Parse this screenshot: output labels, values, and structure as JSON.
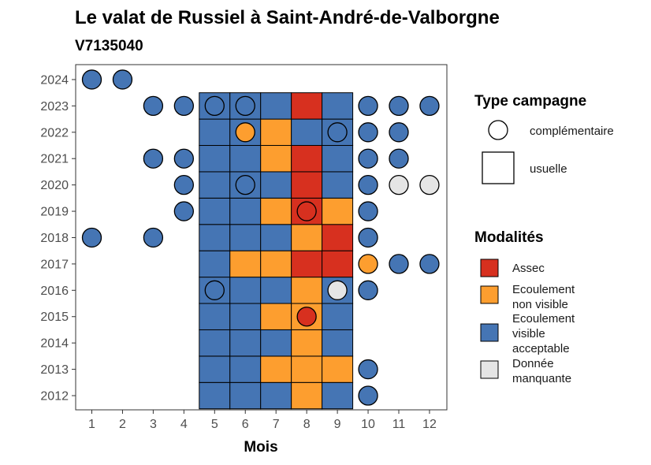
{
  "chart_data": {
    "type": "heatmap",
    "title": "Le valat de Russiel à Saint-André-de-Valborgne",
    "subtitle": "V7135040",
    "xlabel": "Mois",
    "x_ticks": [
      "1",
      "2",
      "3",
      "4",
      "5",
      "6",
      "7",
      "8",
      "9",
      "10",
      "11",
      "12"
    ],
    "y_ticks": [
      "2012",
      "2013",
      "2014",
      "2015",
      "2016",
      "2017",
      "2018",
      "2019",
      "2020",
      "2021",
      "2022",
      "2023",
      "2024"
    ],
    "grid": false,
    "colors": {
      "Assec": "#d7301f",
      "Ecoulement non visible": "#fd9e2f",
      "Ecoulement visible acceptable": "#4575b4",
      "Donnée manquante": "#e5e5e5"
    },
    "legend_type": {
      "title": "Type campagne",
      "placement": "right",
      "items": [
        {
          "label": "complémentaire",
          "shape": "circle"
        },
        {
          "label": "usuelle",
          "shape": "square"
        }
      ]
    },
    "legend_modalites": {
      "title": "Modalités",
      "placement": "right",
      "items": [
        {
          "key": "Assec",
          "lines": [
            "Assec"
          ]
        },
        {
          "key": "Ecoulement non visible",
          "lines": [
            "Ecoulement",
            "non visible"
          ]
        },
        {
          "key": "Ecoulement visible acceptable",
          "lines": [
            "Ecoulement",
            "visible",
            "acceptable"
          ]
        },
        {
          "key": "Donnée manquante",
          "lines": [
            "Donnée",
            "manquante"
          ]
        }
      ]
    },
    "usuelle": [
      {
        "year": 2012,
        "values": {
          "5": "V",
          "6": "V",
          "7": "V",
          "8": "N",
          "9": "V"
        }
      },
      {
        "year": 2013,
        "values": {
          "5": "V",
          "6": "V",
          "7": "N",
          "8": "N",
          "9": "N"
        }
      },
      {
        "year": 2014,
        "values": {
          "5": "V",
          "6": "V",
          "7": "V",
          "8": "N",
          "9": "V"
        }
      },
      {
        "year": 2015,
        "values": {
          "5": "V",
          "6": "V",
          "7": "N",
          "8": "N",
          "9": "V"
        }
      },
      {
        "year": 2016,
        "values": {
          "5": "V",
          "6": "V",
          "7": "V",
          "8": "N",
          "9": "V"
        }
      },
      {
        "year": 2017,
        "values": {
          "5": "V",
          "6": "N",
          "7": "N",
          "8": "A",
          "9": "A"
        }
      },
      {
        "year": 2018,
        "values": {
          "5": "V",
          "6": "V",
          "7": "V",
          "8": "N",
          "9": "A"
        }
      },
      {
        "year": 2019,
        "values": {
          "5": "V",
          "6": "V",
          "7": "N",
          "8": "A",
          "9": "N"
        }
      },
      {
        "year": 2020,
        "values": {
          "5": "V",
          "6": "V",
          "7": "V",
          "8": "A",
          "9": "V"
        }
      },
      {
        "year": 2021,
        "values": {
          "5": "V",
          "6": "V",
          "7": "N",
          "8": "A",
          "9": "V"
        }
      },
      {
        "year": 2022,
        "values": {
          "5": "V",
          "6": "V",
          "7": "N",
          "8": "V",
          "9": "V"
        }
      },
      {
        "year": 2023,
        "values": {
          "5": "V",
          "6": "V",
          "7": "V",
          "8": "A",
          "9": "V"
        }
      }
    ],
    "complementaire": [
      {
        "year": 2012,
        "values": {
          "10": "V"
        }
      },
      {
        "year": 2013,
        "values": {
          "10": "V"
        }
      },
      {
        "year": 2015,
        "values": {
          "8": "A"
        }
      },
      {
        "year": 2016,
        "values": {
          "5": "V",
          "9": "M",
          "10": "V"
        }
      },
      {
        "year": 2017,
        "values": {
          "10": "N",
          "11": "V",
          "12": "V"
        }
      },
      {
        "year": 2018,
        "values": {
          "1": "V",
          "3": "V",
          "10": "V"
        }
      },
      {
        "year": 2019,
        "values": {
          "4": "V",
          "8": "A",
          "10": "V"
        }
      },
      {
        "year": 2020,
        "values": {
          "4": "V",
          "6": "V",
          "10": "V",
          "11": "M",
          "12": "M"
        }
      },
      {
        "year": 2021,
        "values": {
          "3": "V",
          "4": "V",
          "10": "V",
          "11": "V"
        }
      },
      {
        "year": 2022,
        "values": {
          "6": "N",
          "9": "V",
          "10": "V",
          "11": "V"
        }
      },
      {
        "year": 2023,
        "values": {
          "3": "V",
          "4": "V",
          "5": "V",
          "6": "V",
          "10": "V",
          "11": "V",
          "12": "V"
        }
      },
      {
        "year": 2024,
        "values": {
          "1": "V",
          "2": "V"
        }
      }
    ],
    "value_codes": {
      "A": "Assec",
      "N": "Ecoulement non visible",
      "V": "Ecoulement visible acceptable",
      "M": "Donnée manquante"
    }
  }
}
